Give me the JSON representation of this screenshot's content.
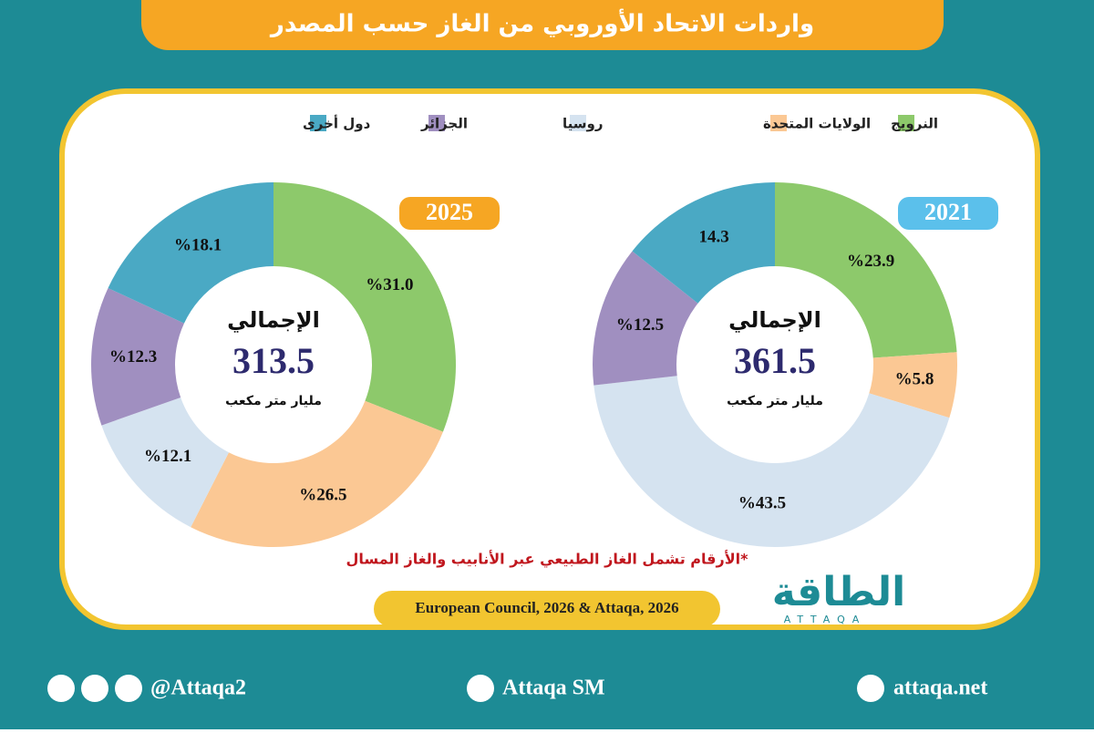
{
  "title": "واردات الاتحاد الأوروبي من الغاز حسب المصدر",
  "legend": {
    "categories": [
      "النرويج",
      "الولايات المتحدة",
      "روسيا",
      "الجزائر",
      "دول أخرى"
    ],
    "colors": [
      "#8dc96b",
      "#fbc894",
      "#d5e3f0",
      "#a08fc0",
      "#4aa9c4"
    ]
  },
  "chart_data": [
    {
      "type": "donut",
      "title": "2021",
      "total_label": "الإجمالي",
      "total": 361.5,
      "total_unit": "مليار متر مكعب",
      "values": [
        23.9,
        5.8,
        43.5,
        12.5,
        14.3
      ],
      "value_labels": [
        "%23.9",
        "%5.8",
        "%43.5",
        "%12.5",
        "14.3"
      ]
    },
    {
      "type": "donut",
      "title": "2025",
      "total_label": "الإجمالي",
      "total": 313.5,
      "total_unit": "مليار متر مكعب",
      "values": [
        31.0,
        26.5,
        12.1,
        12.3,
        18.1
      ],
      "value_labels": [
        "%31.0",
        "%26.5",
        "%12.1",
        "%12.3",
        "%18.1"
      ]
    }
  ],
  "note": "*الأرقام تشمل الغاز الطبيعي عبر الأنابيب والغاز المسال",
  "source": "European Council, 2026 & Attaqa, 2026",
  "logo": {
    "arabic": "الطاقة",
    "latin": "ATTAQA"
  },
  "footer": {
    "social": "@Attaqa2",
    "youtube": "Attaqa SM",
    "website": "attaqa.net"
  }
}
